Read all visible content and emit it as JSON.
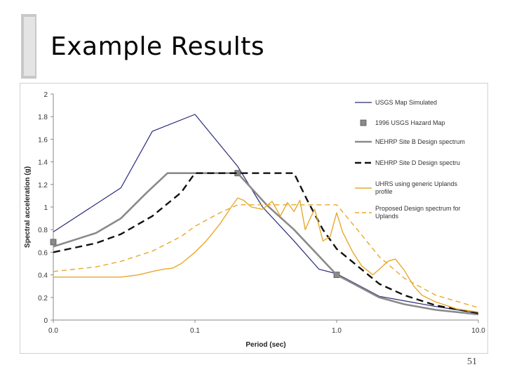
{
  "slide": {
    "title": "Example Results",
    "page_number": "51"
  },
  "chart_data": {
    "type": "line",
    "xlabel": "Period (sec)",
    "ylabel": "Spectral acceleration (g)",
    "x_scale": "log",
    "xlim": [
      0.01,
      10
    ],
    "ylim": [
      0,
      2
    ],
    "x_ticks": [
      "0.0",
      "0.1",
      "1.0",
      "10.0"
    ],
    "x_tick_values": [
      0.01,
      0.1,
      1,
      10
    ],
    "y_ticks": [
      "0",
      "0.2",
      "0.4",
      "0.6",
      "0.8",
      "1",
      "1.2",
      "1.4",
      "1.6",
      "1.8",
      "2"
    ],
    "y_tick_values": [
      0,
      0.2,
      0.4,
      0.6,
      0.8,
      1,
      1.2,
      1.4,
      1.6,
      1.8,
      2
    ],
    "grid": false,
    "legend_position": "right",
    "series": [
      {
        "name": "USGS Map Simulated",
        "color": "#2a2a7a",
        "style": "line",
        "x": [
          0.01,
          0.03,
          0.05,
          0.1,
          0.2,
          0.3,
          0.5,
          0.75,
          1.0,
          2.0,
          3.0,
          5.0,
          10.0
        ],
        "y": [
          0.78,
          1.17,
          1.67,
          1.82,
          1.36,
          1.0,
          0.7,
          0.45,
          0.41,
          0.21,
          0.17,
          0.12,
          0.06
        ]
      },
      {
        "name": "1996 USGS Hazard Map",
        "color": "#808080",
        "style": "markers",
        "x": [
          0.01,
          0.2,
          1.0
        ],
        "y": [
          0.69,
          1.3,
          0.4
        ]
      },
      {
        "name": "NEHRP Site B Design spectrum",
        "color": "#8a8a8a",
        "style": "line",
        "x": [
          0.01,
          0.02,
          0.03,
          0.045,
          0.064,
          0.1,
          0.2,
          0.32,
          0.5,
          1.0,
          2.0,
          3.0,
          5.0,
          10.0
        ],
        "y": [
          0.65,
          0.77,
          0.9,
          1.12,
          1.3,
          1.3,
          1.3,
          1.02,
          0.8,
          0.4,
          0.2,
          0.14,
          0.09,
          0.05
        ]
      },
      {
        "name": "NEHRP Site D Design spectru",
        "color": "#111111",
        "style": "dashed",
        "x": [
          0.01,
          0.02,
          0.03,
          0.05,
          0.08,
          0.1,
          0.2,
          0.3,
          0.5,
          0.62,
          0.8,
          1.0,
          2.0,
          3.0,
          5.0,
          10.0
        ],
        "y": [
          0.6,
          0.68,
          0.76,
          0.92,
          1.13,
          1.3,
          1.3,
          1.3,
          1.3,
          1.06,
          0.8,
          0.63,
          0.32,
          0.22,
          0.13,
          0.06
        ]
      },
      {
        "name": "UHRS using generic Uplands profile",
        "color": "#e8a82a",
        "style": "line",
        "x": [
          0.01,
          0.02,
          0.03,
          0.04,
          0.05,
          0.06,
          0.07,
          0.08,
          0.1,
          0.12,
          0.15,
          0.18,
          0.2,
          0.22,
          0.25,
          0.3,
          0.35,
          0.4,
          0.45,
          0.5,
          0.55,
          0.6,
          0.65,
          0.7,
          0.8,
          0.9,
          1.0,
          1.1,
          1.3,
          1.5,
          1.8,
          2.0,
          2.3,
          2.6,
          3.0,
          3.5,
          4.0,
          5.0,
          7.0,
          10.0
        ],
        "y": [
          0.38,
          0.38,
          0.38,
          0.4,
          0.43,
          0.45,
          0.46,
          0.5,
          0.6,
          0.7,
          0.85,
          1.0,
          1.08,
          1.06,
          1.0,
          0.98,
          1.05,
          0.92,
          1.04,
          0.96,
          1.06,
          0.8,
          0.9,
          0.98,
          0.7,
          0.74,
          0.95,
          0.78,
          0.6,
          0.48,
          0.4,
          0.45,
          0.52,
          0.54,
          0.44,
          0.3,
          0.22,
          0.16,
          0.1,
          0.07
        ]
      },
      {
        "name": "Proposed Design spectrum for Uplands",
        "color": "#e8a82a",
        "style": "dashed",
        "x": [
          0.01,
          0.02,
          0.03,
          0.05,
          0.08,
          0.1,
          0.15,
          0.2,
          0.3,
          0.5,
          0.7,
          1.0,
          1.4,
          2.0,
          3.0,
          5.0,
          10.0
        ],
        "y": [
          0.43,
          0.47,
          0.52,
          0.61,
          0.74,
          0.83,
          0.95,
          1.02,
          1.02,
          1.02,
          1.02,
          1.02,
          0.8,
          0.56,
          0.37,
          0.22,
          0.11
        ]
      }
    ],
    "legend": [
      {
        "label": "USGS Map Simulated",
        "line1": "USGS Map Simulated",
        "line2": ""
      },
      {
        "label": "1996 USGS Hazard Map",
        "line1": "1996 USGS Hazard Map",
        "line2": ""
      },
      {
        "label": "NEHRP Site B Design spectrum",
        "line1": "NEHRP Site B Design spectrum",
        "line2": ""
      },
      {
        "label": "NEHRP Site D Design spectru",
        "line1": "NEHRP Site D Design spectru",
        "line2": ""
      },
      {
        "label": "UHRS using generic Uplands profile",
        "line1": "UHRS using generic Uplands",
        "line2": "profile"
      },
      {
        "label": "Proposed Design spectrum for Uplands",
        "line1": "Proposed Design spectrum for",
        "line2": "Uplands"
      }
    ]
  }
}
